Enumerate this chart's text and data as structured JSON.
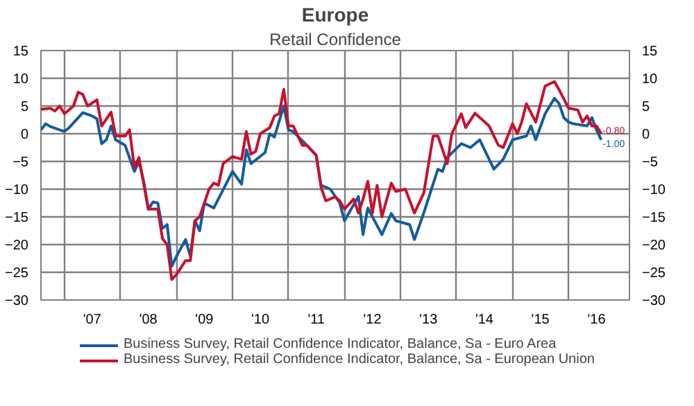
{
  "chart_data": {
    "type": "line",
    "title": "Europe",
    "subtitle": "Retail Confidence",
    "xlim": [
      "2006-08",
      "2017-02"
    ],
    "xticks": [
      {
        "value": "2007-01",
        "label": null
      },
      {
        "value": "2007-07",
        "label": "'07"
      },
      {
        "value": "2008-01",
        "label": null
      },
      {
        "value": "2008-07",
        "label": "'08"
      },
      {
        "value": "2009-01",
        "label": null
      },
      {
        "value": "2009-07",
        "label": "'09"
      },
      {
        "value": "2010-01",
        "label": null
      },
      {
        "value": "2010-07",
        "label": "'10"
      },
      {
        "value": "2011-01",
        "label": null
      },
      {
        "value": "2011-07",
        "label": "'11"
      },
      {
        "value": "2012-01",
        "label": null
      },
      {
        "value": "2012-07",
        "label": "'12"
      },
      {
        "value": "2013-01",
        "label": null
      },
      {
        "value": "2013-07",
        "label": "'13"
      },
      {
        "value": "2014-01",
        "label": null
      },
      {
        "value": "2014-07",
        "label": "'14"
      },
      {
        "value": "2015-01",
        "label": null
      },
      {
        "value": "2015-07",
        "label": "'15"
      },
      {
        "value": "2016-01",
        "label": null
      },
      {
        "value": "2016-07",
        "label": "'16"
      }
    ],
    "ylim": [
      -30,
      15
    ],
    "yticks": [
      -30,
      -25,
      -20,
      -15,
      -10,
      -5,
      0,
      5,
      10,
      15
    ],
    "y2lim": [
      -30,
      15
    ],
    "y2ticks": [
      -30,
      -25,
      -20,
      -15,
      -10,
      -5,
      0,
      5,
      10,
      15
    ],
    "grid": true,
    "legend": "bottom",
    "annotations": [
      {
        "text": "-1.00",
        "x": "2016-08",
        "y": -1.1
      },
      {
        "text": "-0.80",
        "x": "2016-08",
        "y": 0
      }
    ],
    "series": [
      {
        "name": "Business Survey, Retail Confidence Indicator, Balance, Sa - Euro Area",
        "color": "#135c9c",
        "x": [
          "2006-08",
          "2006-09",
          "2006-10",
          "2007-01",
          "2007-02",
          "2007-05",
          "2007-07",
          "2007-08",
          "2007-09",
          "2007-10",
          "2007-11",
          "2007-12",
          "2008-02",
          "2008-04",
          "2008-05",
          "2008-06",
          "2008-07",
          "2008-08",
          "2008-09",
          "2008-10",
          "2008-11",
          "2008-12",
          "2009-01",
          "2009-03",
          "2009-04",
          "2009-05",
          "2009-06",
          "2009-07",
          "2009-09",
          "2010-01",
          "2010-03",
          "2010-04",
          "2010-05",
          "2010-08",
          "2010-09",
          "2010-10",
          "2010-12",
          "2011-01",
          "2011-02",
          "2011-05",
          "2011-07",
          "2011-08",
          "2011-10",
          "2011-12",
          "2012-01",
          "2012-04",
          "2012-05",
          "2012-06",
          "2012-09",
          "2012-11",
          "2012-12",
          "2013-03",
          "2013-04",
          "2013-06",
          "2013-09",
          "2013-10",
          "2013-11",
          "2014-02",
          "2014-04",
          "2014-06",
          "2014-09",
          "2014-11",
          "2015-01",
          "2015-04",
          "2015-05",
          "2015-06",
          "2015-08",
          "2015-10",
          "2015-11",
          "2015-12",
          "2016-01",
          "2016-02",
          "2016-05",
          "2016-06",
          "2016-07",
          "2016-08"
        ],
        "values": [
          0.7,
          1.8,
          1.3,
          0.4,
          1.1,
          3.8,
          3.2,
          2.7,
          -1.8,
          -1.1,
          1.4,
          -1.1,
          -2.1,
          -6.8,
          -5,
          -8.6,
          -13.6,
          -12.3,
          -12.5,
          -17.1,
          -16.4,
          -23.9,
          -22.1,
          -19.1,
          -22.1,
          -15.7,
          -17.5,
          -12.5,
          -13.4,
          -6.8,
          -9.1,
          -2.9,
          -5.4,
          -3.4,
          0,
          -0.6,
          5,
          0.7,
          0.4,
          -2.1,
          -3.9,
          -9.3,
          -10,
          -12.5,
          -15.7,
          -11.3,
          -18.2,
          -13.4,
          -18.2,
          -14.4,
          -15.7,
          -16.4,
          -19.1,
          -14.3,
          -6.4,
          -6.8,
          -4.3,
          -1.8,
          -2.5,
          -1.1,
          -6.4,
          -4.6,
          -1.1,
          -0.4,
          1.4,
          -1.1,
          3.6,
          6.4,
          5.4,
          2.9,
          2.1,
          1.8,
          1.4,
          2.9,
          0.7,
          -1.1
        ]
      },
      {
        "name": "Business Survey, Retail Confidence Indicator, Balance, Sa - European Union",
        "color": "#c8102e",
        "x": [
          "2006-08",
          "2006-10",
          "2006-11",
          "2006-12",
          "2007-01",
          "2007-03",
          "2007-04",
          "2007-05",
          "2007-06",
          "2007-08",
          "2007-09",
          "2007-11",
          "2007-12",
          "2008-02",
          "2008-03",
          "2008-04",
          "2008-05",
          "2008-07",
          "2008-09",
          "2008-10",
          "2008-11",
          "2008-12",
          "2009-01",
          "2009-03",
          "2009-04",
          "2009-05",
          "2009-06",
          "2009-08",
          "2009-09",
          "2009-10",
          "2009-11",
          "2010-01",
          "2010-03",
          "2010-04",
          "2010-05",
          "2010-06",
          "2010-07",
          "2010-09",
          "2010-10",
          "2010-11",
          "2010-12",
          "2011-01",
          "2011-02",
          "2011-04",
          "2011-05",
          "2011-07",
          "2011-08",
          "2011-09",
          "2011-11",
          "2011-12",
          "2012-01",
          "2012-03",
          "2012-04",
          "2012-05",
          "2012-06",
          "2012-07",
          "2012-08",
          "2012-09",
          "2012-11",
          "2012-12",
          "2013-02",
          "2013-04",
          "2013-06",
          "2013-08",
          "2013-09",
          "2013-11",
          "2013-12",
          "2014-02",
          "2014-03",
          "2014-05",
          "2014-08",
          "2014-10",
          "2014-11",
          "2015-01",
          "2015-02",
          "2015-03",
          "2015-04",
          "2015-06",
          "2015-08",
          "2015-10",
          "2015-11",
          "2016-01",
          "2016-03",
          "2016-04",
          "2016-05",
          "2016-06",
          "2016-07",
          "2016-08"
        ],
        "values": [
          4.4,
          4.6,
          4.1,
          5,
          3.6,
          5,
          7.5,
          7.1,
          5,
          6.1,
          1.4,
          3.9,
          -0.4,
          -0.4,
          0.7,
          -6.1,
          -4.3,
          -13.6,
          -13.6,
          -18.9,
          -20,
          -26.3,
          -25.4,
          -22.9,
          -22.9,
          -15.7,
          -15,
          -10,
          -8.9,
          -9.3,
          -5.4,
          -4.1,
          -4.6,
          0.4,
          -3.7,
          -3.2,
          0,
          1.1,
          3.2,
          3.6,
          8,
          1.4,
          1.4,
          -2.1,
          -2.1,
          -3.9,
          -9.6,
          -12.1,
          -11.4,
          -12.1,
          -13.6,
          -11.8,
          -14.3,
          -11.8,
          -8.6,
          -14.3,
          -9.3,
          -15,
          -8.9,
          -10.4,
          -10,
          -14.3,
          -10.7,
          -0.4,
          -0.4,
          -5.4,
          0,
          3.6,
          1.1,
          3.7,
          1.4,
          -2.1,
          -2.5,
          1.8,
          0,
          2.1,
          5.4,
          2.1,
          8.6,
          9.4,
          7.9,
          4.6,
          4.3,
          2.1,
          3.2,
          1.4,
          1.4,
          0
        ]
      }
    ]
  }
}
